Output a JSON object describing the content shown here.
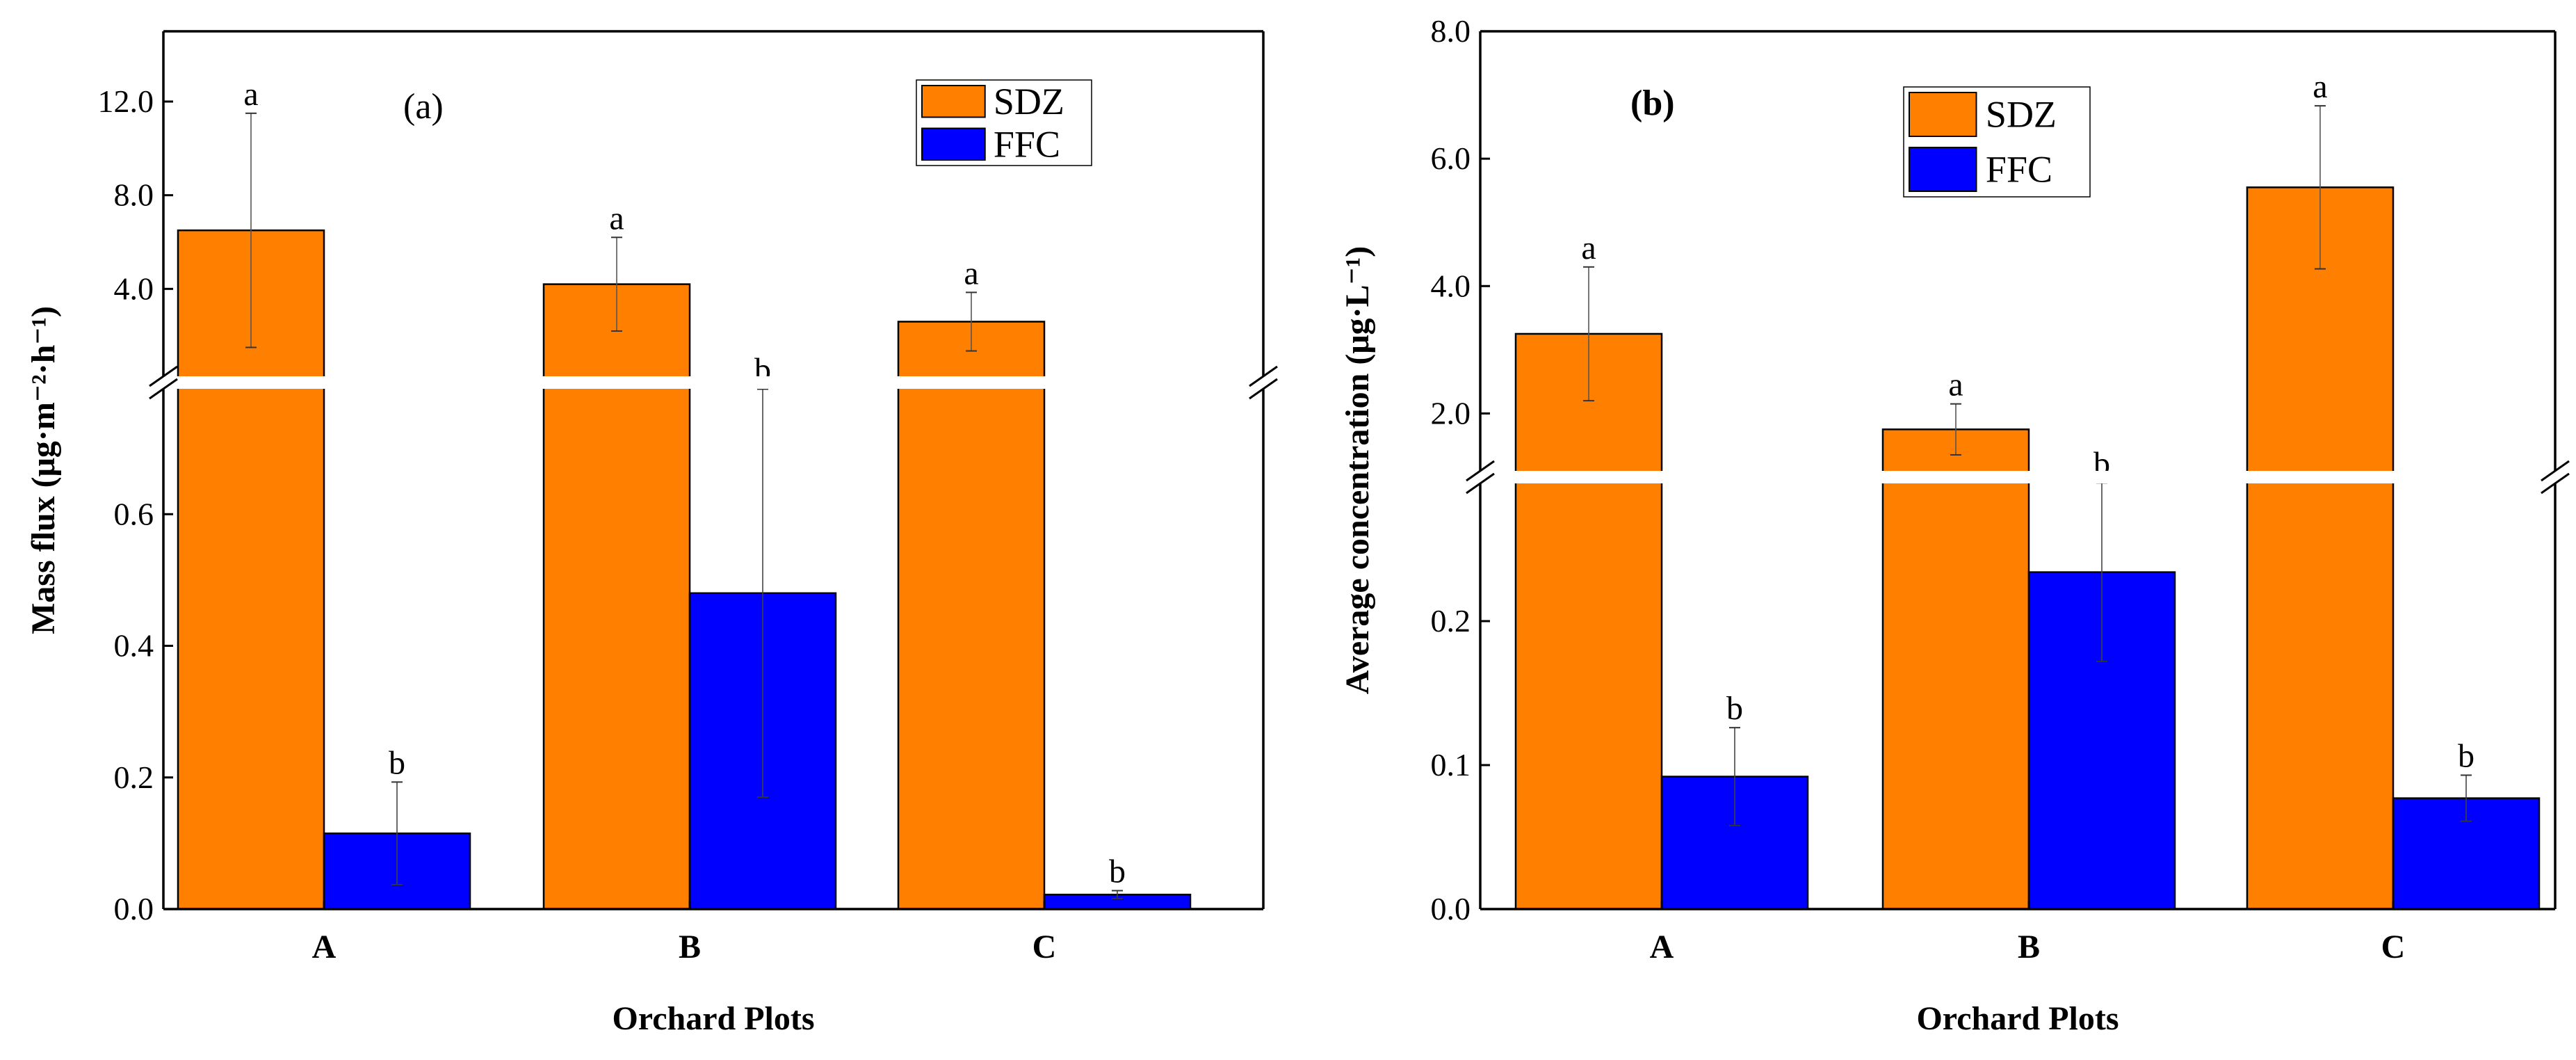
{
  "colors": {
    "SDZ": "#ff8000",
    "FFC": "#0000ff",
    "axis": "#000000",
    "break": "#ffffff"
  },
  "chart_data": [
    {
      "type": "bar",
      "panel_label": "(a)",
      "xlabel": "Orchard Plots",
      "ylabel_main": "Mass flux",
      "ylabel_unit": "(μg·m⁻²·h⁻¹)",
      "categories": [
        "A",
        "B",
        "C"
      ],
      "series": [
        {
          "name": "SDZ",
          "values": [
            6.5,
            4.2,
            2.6
          ],
          "errors": [
            5.0,
            2.0,
            1.25
          ],
          "letters": [
            "a",
            "a",
            "a"
          ]
        },
        {
          "name": "FFC",
          "values": [
            0.115,
            0.48,
            0.022
          ],
          "errors": [
            0.078,
            0.31,
            0.006
          ],
          "letters": [
            "b",
            "b",
            "b"
          ]
        }
      ],
      "axis_break": {
        "lower_range": [
          0,
          0.8
        ],
        "upper_range": [
          0,
          15
        ]
      },
      "lower_ticks": [
        {
          "value": 0.0,
          "label": "0.0"
        },
        {
          "value": 0.2,
          "label": "0.2"
        },
        {
          "value": 0.4,
          "label": "0.4"
        },
        {
          "value": 0.6,
          "label": "0.6"
        }
      ],
      "upper_ticks": [
        {
          "value": 4.0,
          "label": "4.0"
        },
        {
          "value": 8.0,
          "label": "8.0"
        },
        {
          "value": 12.0,
          "label": "12.0"
        }
      ],
      "legend": [
        "SDZ",
        "FFC"
      ]
    },
    {
      "type": "bar",
      "panel_label": "(b)",
      "xlabel": "Orchard Plots",
      "ylabel_main": "Average concentration",
      "ylabel_unit": "(μg·L⁻¹)",
      "categories": [
        "A",
        "B",
        "C"
      ],
      "series": [
        {
          "name": "SDZ",
          "values": [
            3.25,
            1.75,
            5.55
          ],
          "errors": [
            1.05,
            0.4,
            1.28
          ],
          "letters": [
            "a",
            "a",
            "a"
          ]
        },
        {
          "name": "FFC",
          "values": [
            0.092,
            0.234,
            0.077
          ],
          "errors": [
            0.034,
            0.062,
            0.016
          ],
          "letters": [
            "b",
            "b",
            "b"
          ]
        }
      ],
      "axis_break": {
        "lower_range": [
          0,
          0.3
        ],
        "upper_range": [
          1,
          8
        ]
      },
      "lower_ticks": [
        {
          "value": 0.0,
          "label": "0.0"
        },
        {
          "value": 0.1,
          "label": "0.1"
        },
        {
          "value": 0.2,
          "label": "0.2"
        }
      ],
      "upper_ticks": [
        {
          "value": 2.0,
          "label": "2.0"
        },
        {
          "value": 4.0,
          "label": "4.0"
        },
        {
          "value": 6.0,
          "label": "6.0"
        },
        {
          "value": 8.0,
          "label": "8.0"
        }
      ],
      "legend": [
        "SDZ",
        "FFC"
      ]
    }
  ]
}
